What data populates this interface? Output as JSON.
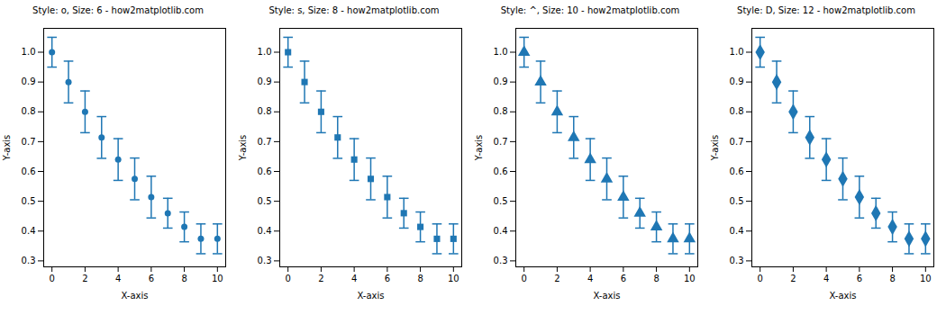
{
  "chart_data": [
    {
      "type": "scatter",
      "title": "Style: o, Size: 6 - how2matplotlib.com",
      "x": [
        0,
        1,
        2,
        3,
        4,
        5,
        6,
        7,
        8,
        9,
        10
      ],
      "values": [
        1.0,
        0.9,
        0.8,
        0.714,
        0.64,
        0.575,
        0.514,
        0.46,
        0.414,
        0.374,
        0.374
      ],
      "yerr": [
        0.05,
        0.07,
        0.07,
        0.07,
        0.07,
        0.07,
        0.07,
        0.05,
        0.05,
        0.05,
        0.05
      ],
      "color": "#1f77b4",
      "marker": "circle",
      "xlabel": "X-axis",
      "ylabel": "Y-axis",
      "xlim": [
        -0.5,
        10.5
      ],
      "ylim": [
        0.28,
        1.08
      ],
      "xticks": [
        0,
        2,
        4,
        6,
        8,
        10
      ],
      "yticks": [
        0.3,
        0.4,
        0.5,
        0.6,
        0.7,
        0.8,
        0.9,
        {
          "value": 1.0,
          "label": "1.0"
        }
      ]
    },
    {
      "type": "scatter",
      "title": "Style: s, Size: 8 - how2matplotlib.com",
      "x": [
        0,
        1,
        2,
        3,
        4,
        5,
        6,
        7,
        8,
        9,
        10
      ],
      "values": [
        1.0,
        0.9,
        0.8,
        0.714,
        0.64,
        0.575,
        0.514,
        0.46,
        0.414,
        0.374,
        0.374
      ],
      "yerr": [
        0.05,
        0.07,
        0.07,
        0.07,
        0.07,
        0.07,
        0.07,
        0.05,
        0.05,
        0.05,
        0.05
      ],
      "color": "#1f77b4",
      "marker": "square",
      "xlabel": "X-axis",
      "ylabel": "Y-axis",
      "xlim": [
        -0.5,
        10.5
      ],
      "ylim": [
        0.28,
        1.08
      ],
      "xticks": [
        0,
        2,
        4,
        6,
        8,
        10
      ],
      "yticks": [
        0.3,
        0.4,
        0.5,
        0.6,
        0.7,
        0.8,
        0.9,
        {
          "value": 1.0,
          "label": "1.0"
        }
      ]
    },
    {
      "type": "scatter",
      "title": "Style: ^, Size: 10 - how2matplotlib.com",
      "x": [
        0,
        1,
        2,
        3,
        4,
        5,
        6,
        7,
        8,
        9,
        10
      ],
      "values": [
        1.0,
        0.9,
        0.8,
        0.714,
        0.64,
        0.575,
        0.514,
        0.46,
        0.414,
        0.374,
        0.374
      ],
      "yerr": [
        0.05,
        0.07,
        0.07,
        0.07,
        0.07,
        0.07,
        0.07,
        0.05,
        0.05,
        0.05,
        0.05
      ],
      "color": "#1f77b4",
      "marker": "triangle",
      "xlabel": "X-axis",
      "ylabel": "Y-axis",
      "xlim": [
        -0.5,
        10.5
      ],
      "ylim": [
        0.28,
        1.08
      ],
      "xticks": [
        0,
        2,
        4,
        6,
        8,
        10
      ],
      "yticks": [
        0.3,
        0.4,
        0.5,
        0.6,
        0.7,
        0.8,
        0.9,
        {
          "value": 1.0,
          "label": "1.0"
        }
      ]
    },
    {
      "type": "scatter",
      "title": "Style: D, Size: 12 - how2matplotlib.com",
      "x": [
        0,
        1,
        2,
        3,
        4,
        5,
        6,
        7,
        8,
        9,
        10
      ],
      "values": [
        1.0,
        0.9,
        0.8,
        0.714,
        0.64,
        0.575,
        0.514,
        0.46,
        0.414,
        0.374,
        0.374
      ],
      "yerr": [
        0.05,
        0.07,
        0.07,
        0.07,
        0.07,
        0.07,
        0.07,
        0.05,
        0.05,
        0.05,
        0.05
      ],
      "color": "#1f77b4",
      "marker": "diamond",
      "xlabel": "X-axis",
      "ylabel": "Y-axis",
      "xlim": [
        -0.5,
        10.5
      ],
      "ylim": [
        0.28,
        1.08
      ],
      "xticks": [
        0,
        2,
        4,
        6,
        8,
        10
      ],
      "yticks": [
        0.3,
        0.4,
        0.5,
        0.6,
        0.7,
        0.8,
        0.9,
        {
          "value": 1.0,
          "label": "1.0"
        }
      ]
    }
  ]
}
